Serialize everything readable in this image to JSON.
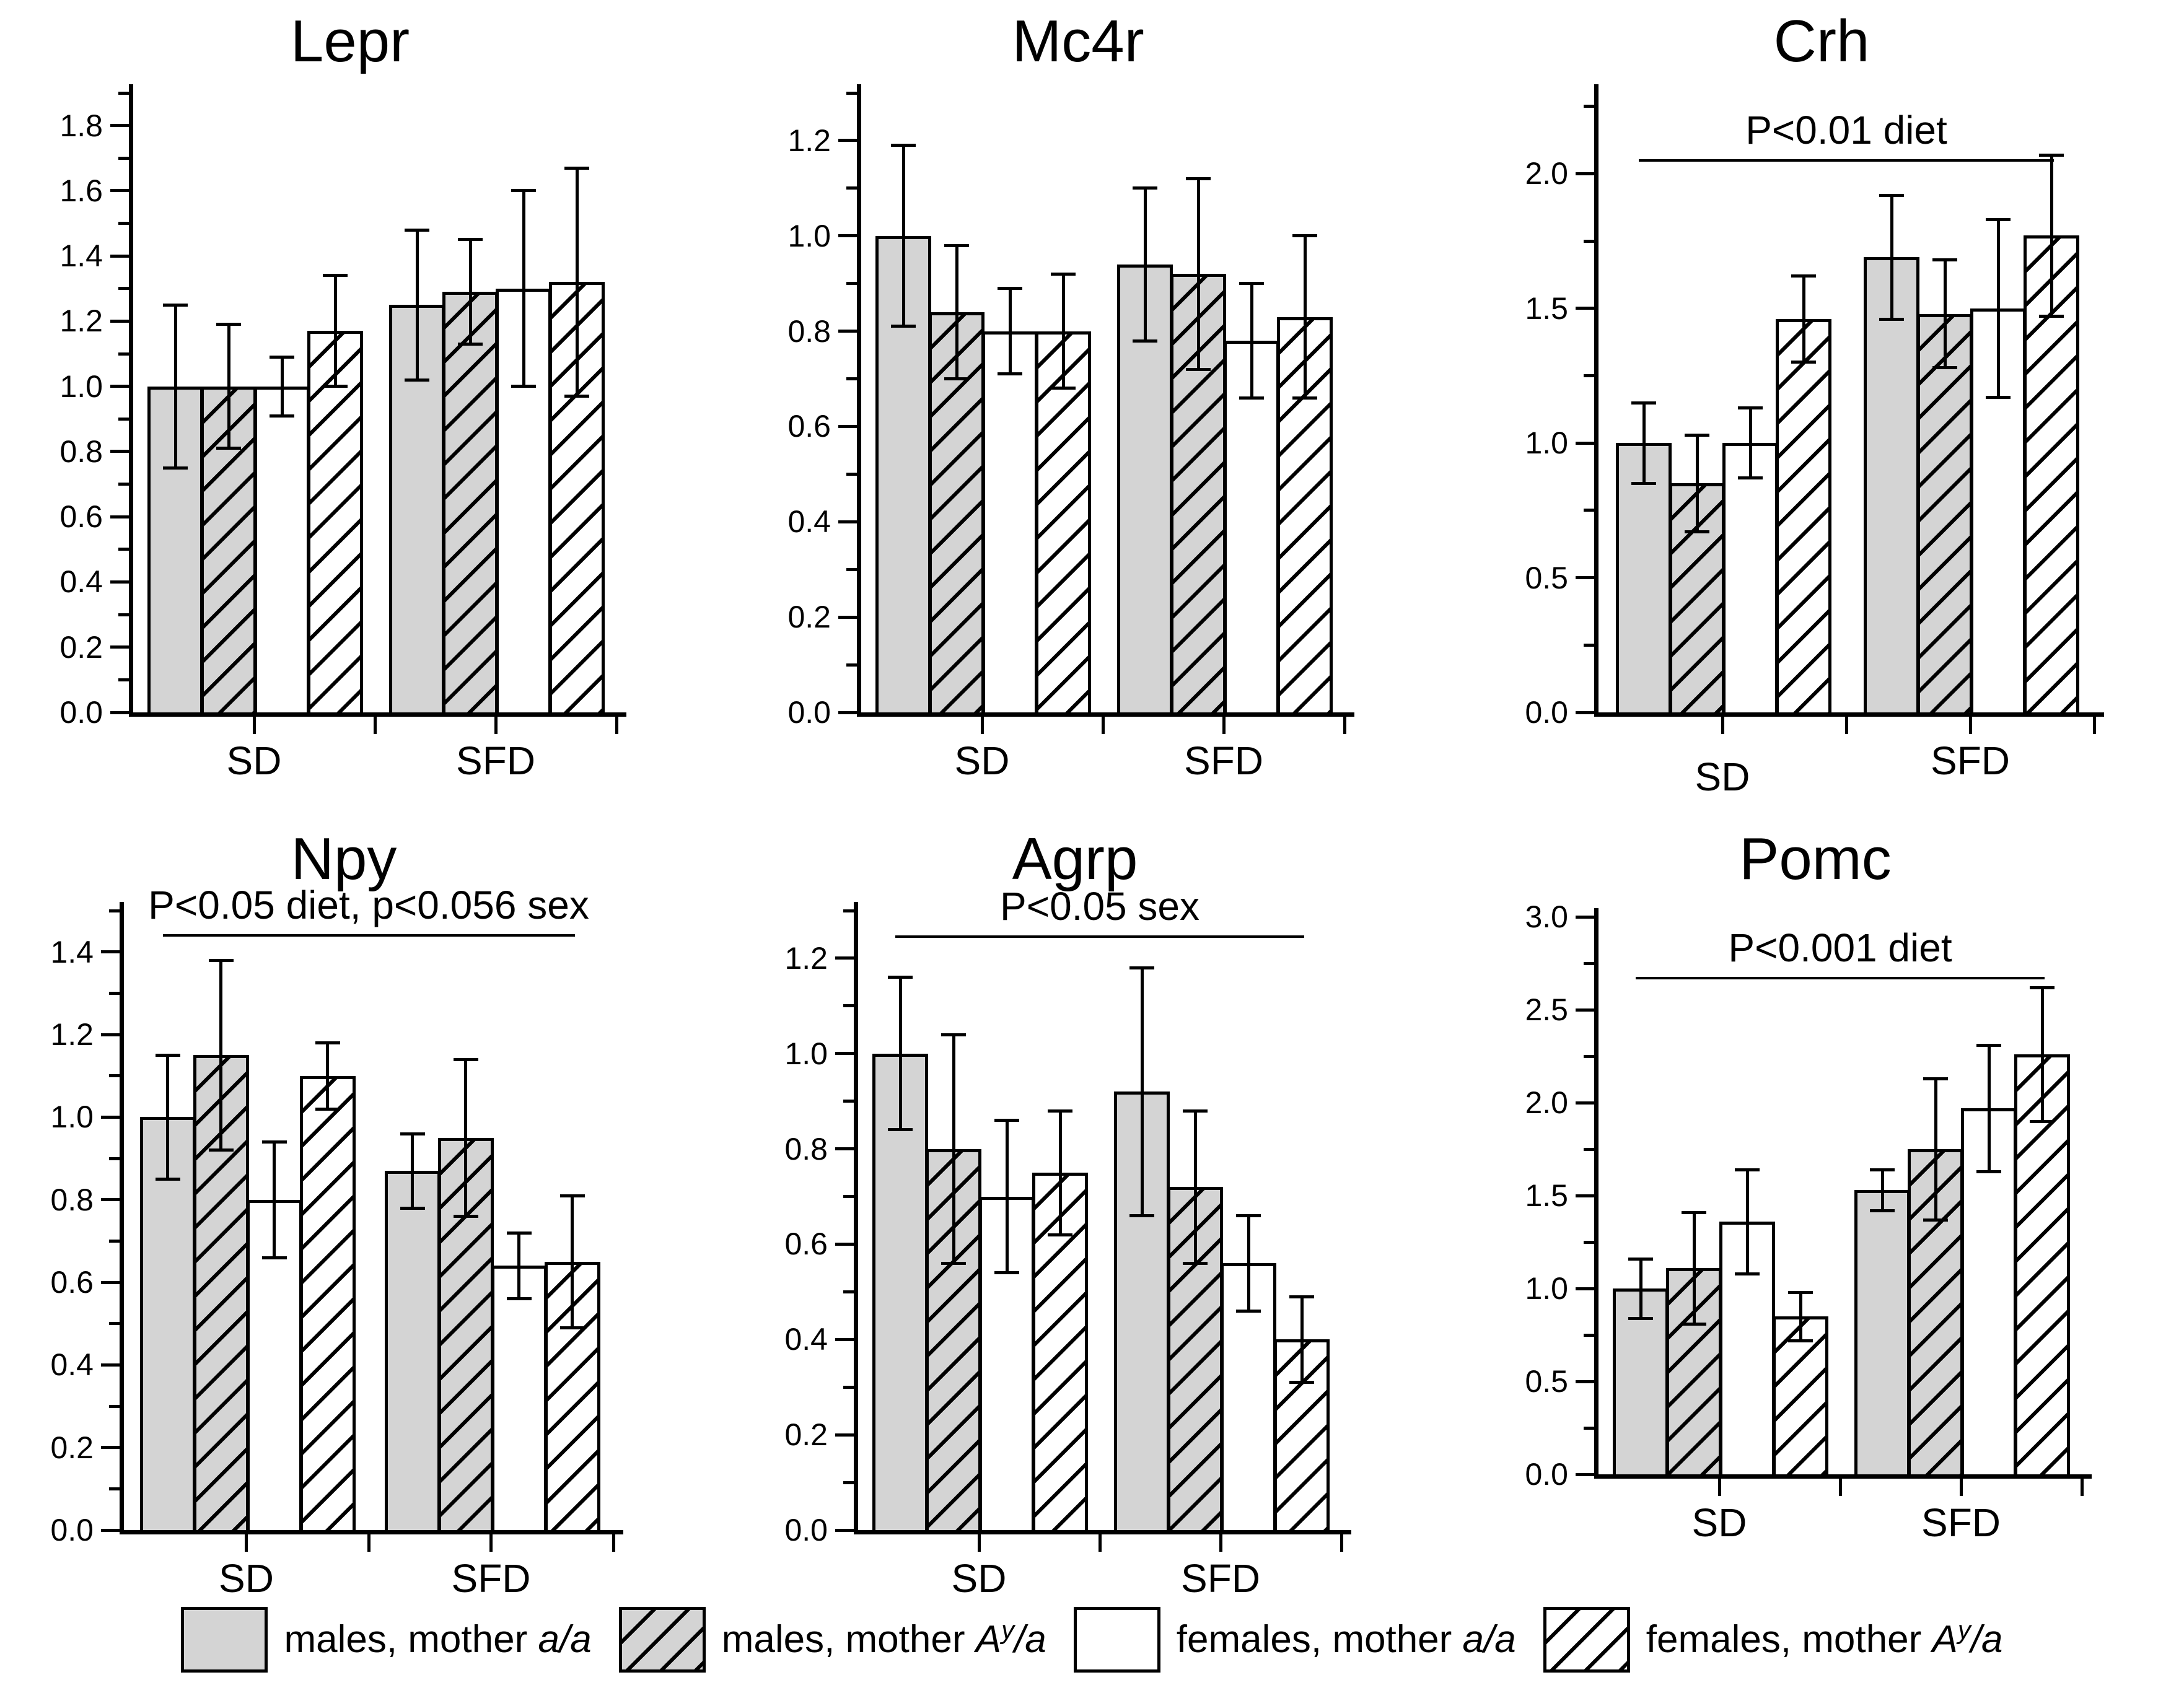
{
  "figure": {
    "colors": {
      "bar_gray": "#d4d4d4",
      "bar_white": "#ffffff",
      "line": "#000000"
    },
    "legend": [
      {
        "prefix": "males, mother ",
        "genotype": "a/a",
        "swatch": "gray-solid"
      },
      {
        "prefix": "males, mother ",
        "genotype": "A^y/a",
        "swatch": "gray-hatched"
      },
      {
        "prefix": "females, mother ",
        "genotype": "a/a",
        "swatch": "white-solid"
      },
      {
        "prefix": "females, mother ",
        "genotype": "A^y/a",
        "swatch": "white-hatched"
      }
    ]
  },
  "chart_data": [
    {
      "type": "bar",
      "title": "Lepr",
      "categories": [
        "SD",
        "SFD"
      ],
      "yticks": [
        "0.0",
        "0.2",
        "0.4",
        "0.6",
        "0.8",
        "1.0",
        "1.2",
        "1.4",
        "1.6",
        "1.8"
      ],
      "axis_top": 1.9,
      "ylim": [
        0,
        1.9
      ],
      "grid": false,
      "significance": null,
      "series": [
        {
          "name": "males, mother a/a",
          "style": "gray-solid",
          "values": [
            1.0,
            1.25
          ],
          "errors": [
            0.25,
            0.23
          ]
        },
        {
          "name": "males, mother Ay/a",
          "style": "gray-hatched",
          "values": [
            1.0,
            1.29
          ],
          "errors": [
            0.19,
            0.16
          ]
        },
        {
          "name": "females, mother a/a",
          "style": "white-solid",
          "values": [
            1.0,
            1.3
          ],
          "errors": [
            0.09,
            0.3
          ]
        },
        {
          "name": "females, mother Ay/a",
          "style": "white-hatched",
          "values": [
            1.17,
            1.32
          ],
          "errors": [
            0.17,
            0.35
          ]
        }
      ]
    },
    {
      "type": "bar",
      "title": "Mc4r",
      "categories": [
        "SD",
        "SFD"
      ],
      "yticks": [
        "0.0",
        "0.2",
        "0.4",
        "0.6",
        "0.8",
        "1.0",
        "1.2"
      ],
      "axis_top": 1.3,
      "ylim": [
        0,
        1.3
      ],
      "grid": false,
      "significance": null,
      "series": [
        {
          "name": "males, mother a/a",
          "style": "gray-solid",
          "values": [
            1.0,
            0.94
          ],
          "errors": [
            0.19,
            0.16
          ]
        },
        {
          "name": "males, mother Ay/a",
          "style": "gray-hatched",
          "values": [
            0.84,
            0.92
          ],
          "errors": [
            0.14,
            0.2
          ]
        },
        {
          "name": "females, mother a/a",
          "style": "white-solid",
          "values": [
            0.8,
            0.78
          ],
          "errors": [
            0.09,
            0.12
          ]
        },
        {
          "name": "females, mother Ay/a",
          "style": "white-hatched",
          "values": [
            0.8,
            0.83
          ],
          "errors": [
            0.12,
            0.17
          ]
        }
      ]
    },
    {
      "type": "bar",
      "title": "Crh",
      "categories": [
        "SD",
        "SFD"
      ],
      "yticks": [
        "0.0",
        "0.5",
        "1.0",
        "1.5",
        "2.0"
      ],
      "axis_top": 2.3,
      "ylim": [
        0,
        2.3
      ],
      "grid": false,
      "significance": {
        "text": "P<0.01 diet",
        "line_y": 2.05
      },
      "series": [
        {
          "name": "males, mother a/a",
          "style": "gray-solid",
          "values": [
            1.0,
            1.69
          ],
          "errors": [
            0.15,
            0.23
          ]
        },
        {
          "name": "males, mother Ay/a",
          "style": "gray-hatched",
          "values": [
            0.85,
            1.48
          ],
          "errors": [
            0.18,
            0.2
          ]
        },
        {
          "name": "females, mother a/a",
          "style": "white-solid",
          "values": [
            1.0,
            1.5
          ],
          "errors": [
            0.13,
            0.33
          ]
        },
        {
          "name": "females, mother Ay/a",
          "style": "white-hatched",
          "values": [
            1.46,
            1.77
          ],
          "errors": [
            0.16,
            0.3
          ]
        }
      ]
    },
    {
      "type": "bar",
      "title": "Npy",
      "categories": [
        "SD",
        "SFD"
      ],
      "yticks": [
        "0.0",
        "0.2",
        "0.4",
        "0.6",
        "0.8",
        "1.0",
        "1.2",
        "1.4"
      ],
      "axis_top": 1.5,
      "ylim": [
        0,
        1.5
      ],
      "grid": false,
      "significance": {
        "text": "P<0.05 diet, p<0.056 sex",
        "line_y": 1.44
      },
      "series": [
        {
          "name": "males, mother a/a",
          "style": "gray-solid",
          "values": [
            1.0,
            0.87
          ],
          "errors": [
            0.15,
            0.09
          ]
        },
        {
          "name": "males, mother Ay/a",
          "style": "gray-hatched",
          "values": [
            1.15,
            0.95
          ],
          "errors": [
            0.23,
            0.19
          ]
        },
        {
          "name": "females, mother a/a",
          "style": "white-solid",
          "values": [
            0.8,
            0.64
          ],
          "errors": [
            0.14,
            0.08
          ]
        },
        {
          "name": "females, mother Ay/a",
          "style": "white-hatched",
          "values": [
            1.1,
            0.65
          ],
          "errors": [
            0.08,
            0.16
          ]
        }
      ]
    },
    {
      "type": "bar",
      "title": "Agrp",
      "categories": [
        "SD",
        "SFD"
      ],
      "yticks": [
        "0.0",
        "0.2",
        "0.4",
        "0.6",
        "0.8",
        "1.0",
        "1.2"
      ],
      "axis_top": 1.3,
      "ylim": [
        0,
        1.3
      ],
      "grid": false,
      "significance": {
        "text": "P<0.05 sex",
        "line_y": 1.245
      },
      "series": [
        {
          "name": "males, mother a/a",
          "style": "gray-solid",
          "values": [
            1.0,
            0.92
          ],
          "errors": [
            0.16,
            0.26
          ]
        },
        {
          "name": "males, mother Ay/a",
          "style": "gray-hatched",
          "values": [
            0.8,
            0.72
          ],
          "errors": [
            0.24,
            0.16
          ]
        },
        {
          "name": "females, mother a/a",
          "style": "white-solid",
          "values": [
            0.7,
            0.56
          ],
          "errors": [
            0.16,
            0.1
          ]
        },
        {
          "name": "females, mother Ay/a",
          "style": "white-hatched",
          "values": [
            0.75,
            0.4
          ],
          "errors": [
            0.13,
            0.09
          ]
        }
      ]
    },
    {
      "type": "bar",
      "title": "Pomc",
      "categories": [
        "SD",
        "SFD"
      ],
      "yticks": [
        "0.0",
        "0.5",
        "1.0",
        "1.5",
        "2.0",
        "2.5",
        "3.0"
      ],
      "axis_top": 3.0,
      "ylim": [
        0,
        3.0
      ],
      "grid": false,
      "significance": {
        "text": "P<0.001 diet",
        "line_y": 2.67
      },
      "series": [
        {
          "name": "males, mother a/a",
          "style": "gray-solid",
          "values": [
            1.0,
            1.53
          ],
          "errors": [
            0.16,
            0.11
          ]
        },
        {
          "name": "males, mother Ay/a",
          "style": "gray-hatched",
          "values": [
            1.11,
            1.75
          ],
          "errors": [
            0.3,
            0.38
          ]
        },
        {
          "name": "females, mother a/a",
          "style": "white-solid",
          "values": [
            1.36,
            1.97
          ],
          "errors": [
            0.28,
            0.34
          ]
        },
        {
          "name": "females, mother Ay/a",
          "style": "white-hatched",
          "values": [
            0.85,
            2.26
          ],
          "errors": [
            0.13,
            0.36
          ]
        }
      ]
    }
  ]
}
